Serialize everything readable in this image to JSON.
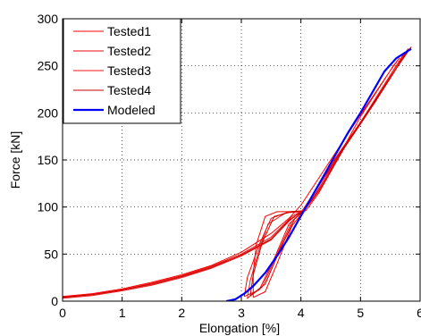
{
  "chart_data": {
    "type": "line",
    "title": "",
    "xlabel": "Elongation [%]",
    "ylabel": "Force [kN]",
    "xlim": [
      0,
      6
    ],
    "ylim": [
      0,
      300
    ],
    "xticks": [
      0,
      1,
      2,
      3,
      4,
      5,
      6
    ],
    "yticks": [
      0,
      50,
      100,
      150,
      200,
      250,
      300
    ],
    "xtick_labels": [
      "0",
      "1",
      "2",
      "3",
      "4",
      "5",
      "6"
    ],
    "ytick_labels": [
      "0",
      "50",
      "100",
      "150",
      "200",
      "250",
      "300"
    ],
    "grid": true,
    "grid_style": "dotted",
    "legend_position": "top-left",
    "series": [
      {
        "name": "Tested1",
        "color": "#ff0000",
        "points": [
          [
            0.0,
            5
          ],
          [
            0.5,
            8
          ],
          [
            1.0,
            13
          ],
          [
            1.5,
            20
          ],
          [
            2.0,
            28
          ],
          [
            2.5,
            38
          ],
          [
            3.0,
            52
          ],
          [
            3.5,
            72
          ],
          [
            3.8,
            88
          ],
          [
            4.0,
            102
          ],
          [
            4.5,
            150
          ],
          [
            5.0,
            198
          ],
          [
            5.5,
            245
          ],
          [
            5.65,
            258
          ],
          [
            5.55,
            250
          ],
          [
            5.0,
            196
          ],
          [
            4.6,
            150
          ],
          [
            4.2,
            110
          ],
          [
            4.05,
            96
          ],
          [
            3.9,
            95
          ],
          [
            3.6,
            95
          ],
          [
            3.4,
            90
          ],
          [
            3.25,
            60
          ],
          [
            3.2,
            30
          ],
          [
            3.2,
            4
          ],
          [
            3.4,
            10
          ],
          [
            3.6,
            40
          ],
          [
            3.85,
            80
          ],
          [
            4.05,
            96
          ]
        ]
      },
      {
        "name": "Tested2",
        "color": "#ee0a0a",
        "points": [
          [
            0.0,
            4
          ],
          [
            0.5,
            7
          ],
          [
            1.0,
            12
          ],
          [
            1.5,
            19
          ],
          [
            2.0,
            27
          ],
          [
            2.5,
            37
          ],
          [
            3.0,
            50
          ],
          [
            3.5,
            68
          ],
          [
            3.85,
            90
          ],
          [
            4.05,
            97
          ],
          [
            4.5,
            145
          ],
          [
            5.0,
            190
          ],
          [
            5.5,
            240
          ],
          [
            5.8,
            268
          ],
          [
            5.7,
            260
          ],
          [
            5.2,
            210
          ],
          [
            4.7,
            160
          ],
          [
            4.3,
            115
          ],
          [
            4.08,
            96
          ],
          [
            3.8,
            95
          ],
          [
            3.5,
            88
          ],
          [
            3.3,
            60
          ],
          [
            3.1,
            25
          ],
          [
            3.05,
            5
          ],
          [
            3.3,
            12
          ],
          [
            3.55,
            45
          ],
          [
            3.8,
            82
          ],
          [
            4.05,
            96
          ]
        ]
      },
      {
        "name": "Tested3",
        "color": "#f01414",
        "points": [
          [
            0.0,
            3
          ],
          [
            0.5,
            6
          ],
          [
            1.0,
            11
          ],
          [
            1.5,
            17
          ],
          [
            2.0,
            25
          ],
          [
            2.5,
            35
          ],
          [
            3.0,
            48
          ],
          [
            3.5,
            65
          ],
          [
            3.8,
            85
          ],
          [
            4.02,
            96
          ],
          [
            4.5,
            142
          ],
          [
            5.0,
            188
          ],
          [
            5.5,
            237
          ],
          [
            5.75,
            262
          ],
          [
            5.6,
            250
          ],
          [
            5.1,
            200
          ],
          [
            4.6,
            152
          ],
          [
            4.2,
            108
          ],
          [
            4.03,
            95
          ],
          [
            3.75,
            94
          ],
          [
            3.45,
            82
          ],
          [
            3.3,
            55
          ],
          [
            3.15,
            22
          ],
          [
            3.1,
            3
          ],
          [
            3.35,
            15
          ],
          [
            3.6,
            50
          ],
          [
            3.85,
            85
          ],
          [
            4.03,
            95
          ]
        ]
      },
      {
        "name": "Tested4",
        "color": "#c80000",
        "points": [
          [
            0.0,
            4
          ],
          [
            0.5,
            7
          ],
          [
            1.0,
            12
          ],
          [
            1.5,
            18
          ],
          [
            2.0,
            26
          ],
          [
            2.5,
            36
          ],
          [
            3.0,
            49
          ],
          [
            3.5,
            66
          ],
          [
            3.82,
            87
          ],
          [
            4.04,
            96
          ],
          [
            4.5,
            143
          ],
          [
            5.0,
            189
          ],
          [
            5.5,
            238
          ],
          [
            5.85,
            270
          ],
          [
            5.75,
            262
          ],
          [
            5.25,
            212
          ],
          [
            4.75,
            165
          ],
          [
            4.3,
            117
          ],
          [
            4.05,
            96
          ],
          [
            3.85,
            95
          ],
          [
            3.55,
            90
          ],
          [
            3.35,
            62
          ],
          [
            3.2,
            28
          ],
          [
            3.15,
            6
          ],
          [
            3.4,
            18
          ],
          [
            3.65,
            55
          ],
          [
            3.9,
            88
          ],
          [
            4.05,
            96
          ]
        ]
      },
      {
        "name": "Modeled",
        "color": "#0000ff",
        "points": [
          [
            2.75,
            0
          ],
          [
            2.9,
            2
          ],
          [
            3.05,
            8
          ],
          [
            3.2,
            16
          ],
          [
            3.4,
            30
          ],
          [
            3.6,
            48
          ],
          [
            3.8,
            68
          ],
          [
            3.95,
            85
          ],
          [
            4.05,
            96
          ],
          [
            4.2,
            113
          ],
          [
            4.4,
            135
          ],
          [
            4.6,
            158
          ],
          [
            4.8,
            180
          ],
          [
            5.0,
            200
          ],
          [
            5.2,
            222
          ],
          [
            5.4,
            244
          ],
          [
            5.6,
            258
          ],
          [
            5.85,
            268
          ]
        ]
      }
    ]
  }
}
